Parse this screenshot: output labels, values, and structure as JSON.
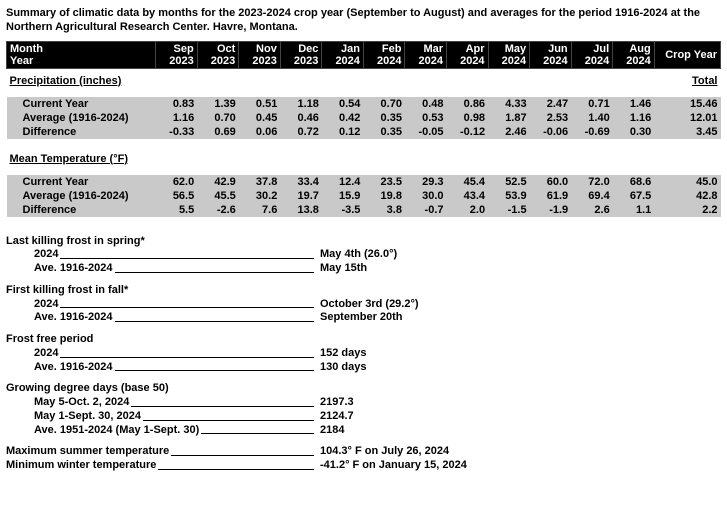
{
  "title": "Summary of climatic data by months for the 2023-2024 crop year (September to August) and averages for the period 1916-2024 at the Northern Agricultural Research Center. Havre, Montana.",
  "header": {
    "monthYear": "Month Year",
    "cols": [
      {
        "m": "Sep",
        "y": "2023"
      },
      {
        "m": "Oct",
        "y": "2023"
      },
      {
        "m": "Nov",
        "y": "2023"
      },
      {
        "m": "Dec",
        "y": "2023"
      },
      {
        "m": "Jan",
        "y": "2024"
      },
      {
        "m": "Feb",
        "y": "2024"
      },
      {
        "m": "Mar",
        "y": "2024"
      },
      {
        "m": "Apr",
        "y": "2024"
      },
      {
        "m": "May",
        "y": "2024"
      },
      {
        "m": "Jun",
        "y": "2024"
      },
      {
        "m": "Jul",
        "y": "2024"
      },
      {
        "m": "Aug",
        "y": "2024"
      }
    ],
    "cropYear": "Crop Year"
  },
  "sections": [
    {
      "title": "Precipitation (inches)",
      "totalLabel": "Total",
      "rows": [
        {
          "label": "Current Year",
          "vals": [
            "0.83",
            "1.39",
            "0.51",
            "1.18",
            "0.54",
            "0.70",
            "0.48",
            "0.86",
            "4.33",
            "2.47",
            "0.71",
            "1.46"
          ],
          "total": "15.46"
        },
        {
          "label": "Average (1916-2024)",
          "vals": [
            "1.16",
            "0.70",
            "0.45",
            "0.46",
            "0.42",
            "0.35",
            "0.53",
            "0.98",
            "1.87",
            "2.53",
            "1.40",
            "1.16"
          ],
          "total": "12.01"
        },
        {
          "label": "Difference",
          "vals": [
            "-0.33",
            "0.69",
            "0.06",
            "0.72",
            "0.12",
            "0.35",
            "-0.05",
            "-0.12",
            "2.46",
            "-0.06",
            "-0.69",
            "0.30"
          ],
          "total": "3.45"
        }
      ]
    },
    {
      "title": "Mean Temperature (°F)",
      "totalLabel": "",
      "rows": [
        {
          "label": "Current Year",
          "vals": [
            "62.0",
            "42.9",
            "37.8",
            "33.4",
            "12.4",
            "23.5",
            "29.3",
            "45.4",
            "52.5",
            "60.0",
            "72.0",
            "68.6"
          ],
          "total": "45.0"
        },
        {
          "label": "Average (1916-2024)",
          "vals": [
            "56.5",
            "45.5",
            "30.2",
            "19.7",
            "15.9",
            "19.8",
            "30.0",
            "43.4",
            "53.9",
            "61.9",
            "69.4",
            "67.5"
          ],
          "total": "42.8"
        },
        {
          "label": "Difference",
          "vals": [
            "5.5",
            "-2.6",
            "7.6",
            "13.8",
            "-3.5",
            "3.8",
            "-0.7",
            "2.0",
            "-1.5",
            "-1.9",
            "2.6",
            "1.1"
          ],
          "total": "2.2"
        }
      ]
    }
  ],
  "listing": [
    {
      "title": "Last killing frost in spring*",
      "items": [
        {
          "label": "2024",
          "value": "May 4th (26.0°)"
        },
        {
          "label": "Ave. 1916-2024",
          "value": "May 15th"
        }
      ]
    },
    {
      "title": "First killing frost in fall*",
      "items": [
        {
          "label": "2024",
          "value": "October 3rd (29.2°)"
        },
        {
          "label": "Ave. 1916-2024",
          "value": "September 20th"
        }
      ]
    },
    {
      "title": "Frost free period",
      "items": [
        {
          "label": "2024",
          "value": "152 days"
        },
        {
          "label": "Ave. 1916-2024",
          "value": "130 days"
        }
      ]
    },
    {
      "title": "Growing degree days (base 50)",
      "items": [
        {
          "label": "May 5-Oct. 2, 2024",
          "value": "2197.3"
        },
        {
          "label": "May 1-Sept. 30, 2024",
          "value": "2124.7"
        },
        {
          "label": "Ave. 1951-2024 (May 1-Sept. 30)",
          "value": "2184"
        }
      ]
    }
  ],
  "extremes": [
    {
      "label": "Maximum summer temperature",
      "value": "104.3° F on July 26, 2024"
    },
    {
      "label": "Minimum winter temperature",
      "value": "-41.2° F on January 15, 2024"
    }
  ]
}
